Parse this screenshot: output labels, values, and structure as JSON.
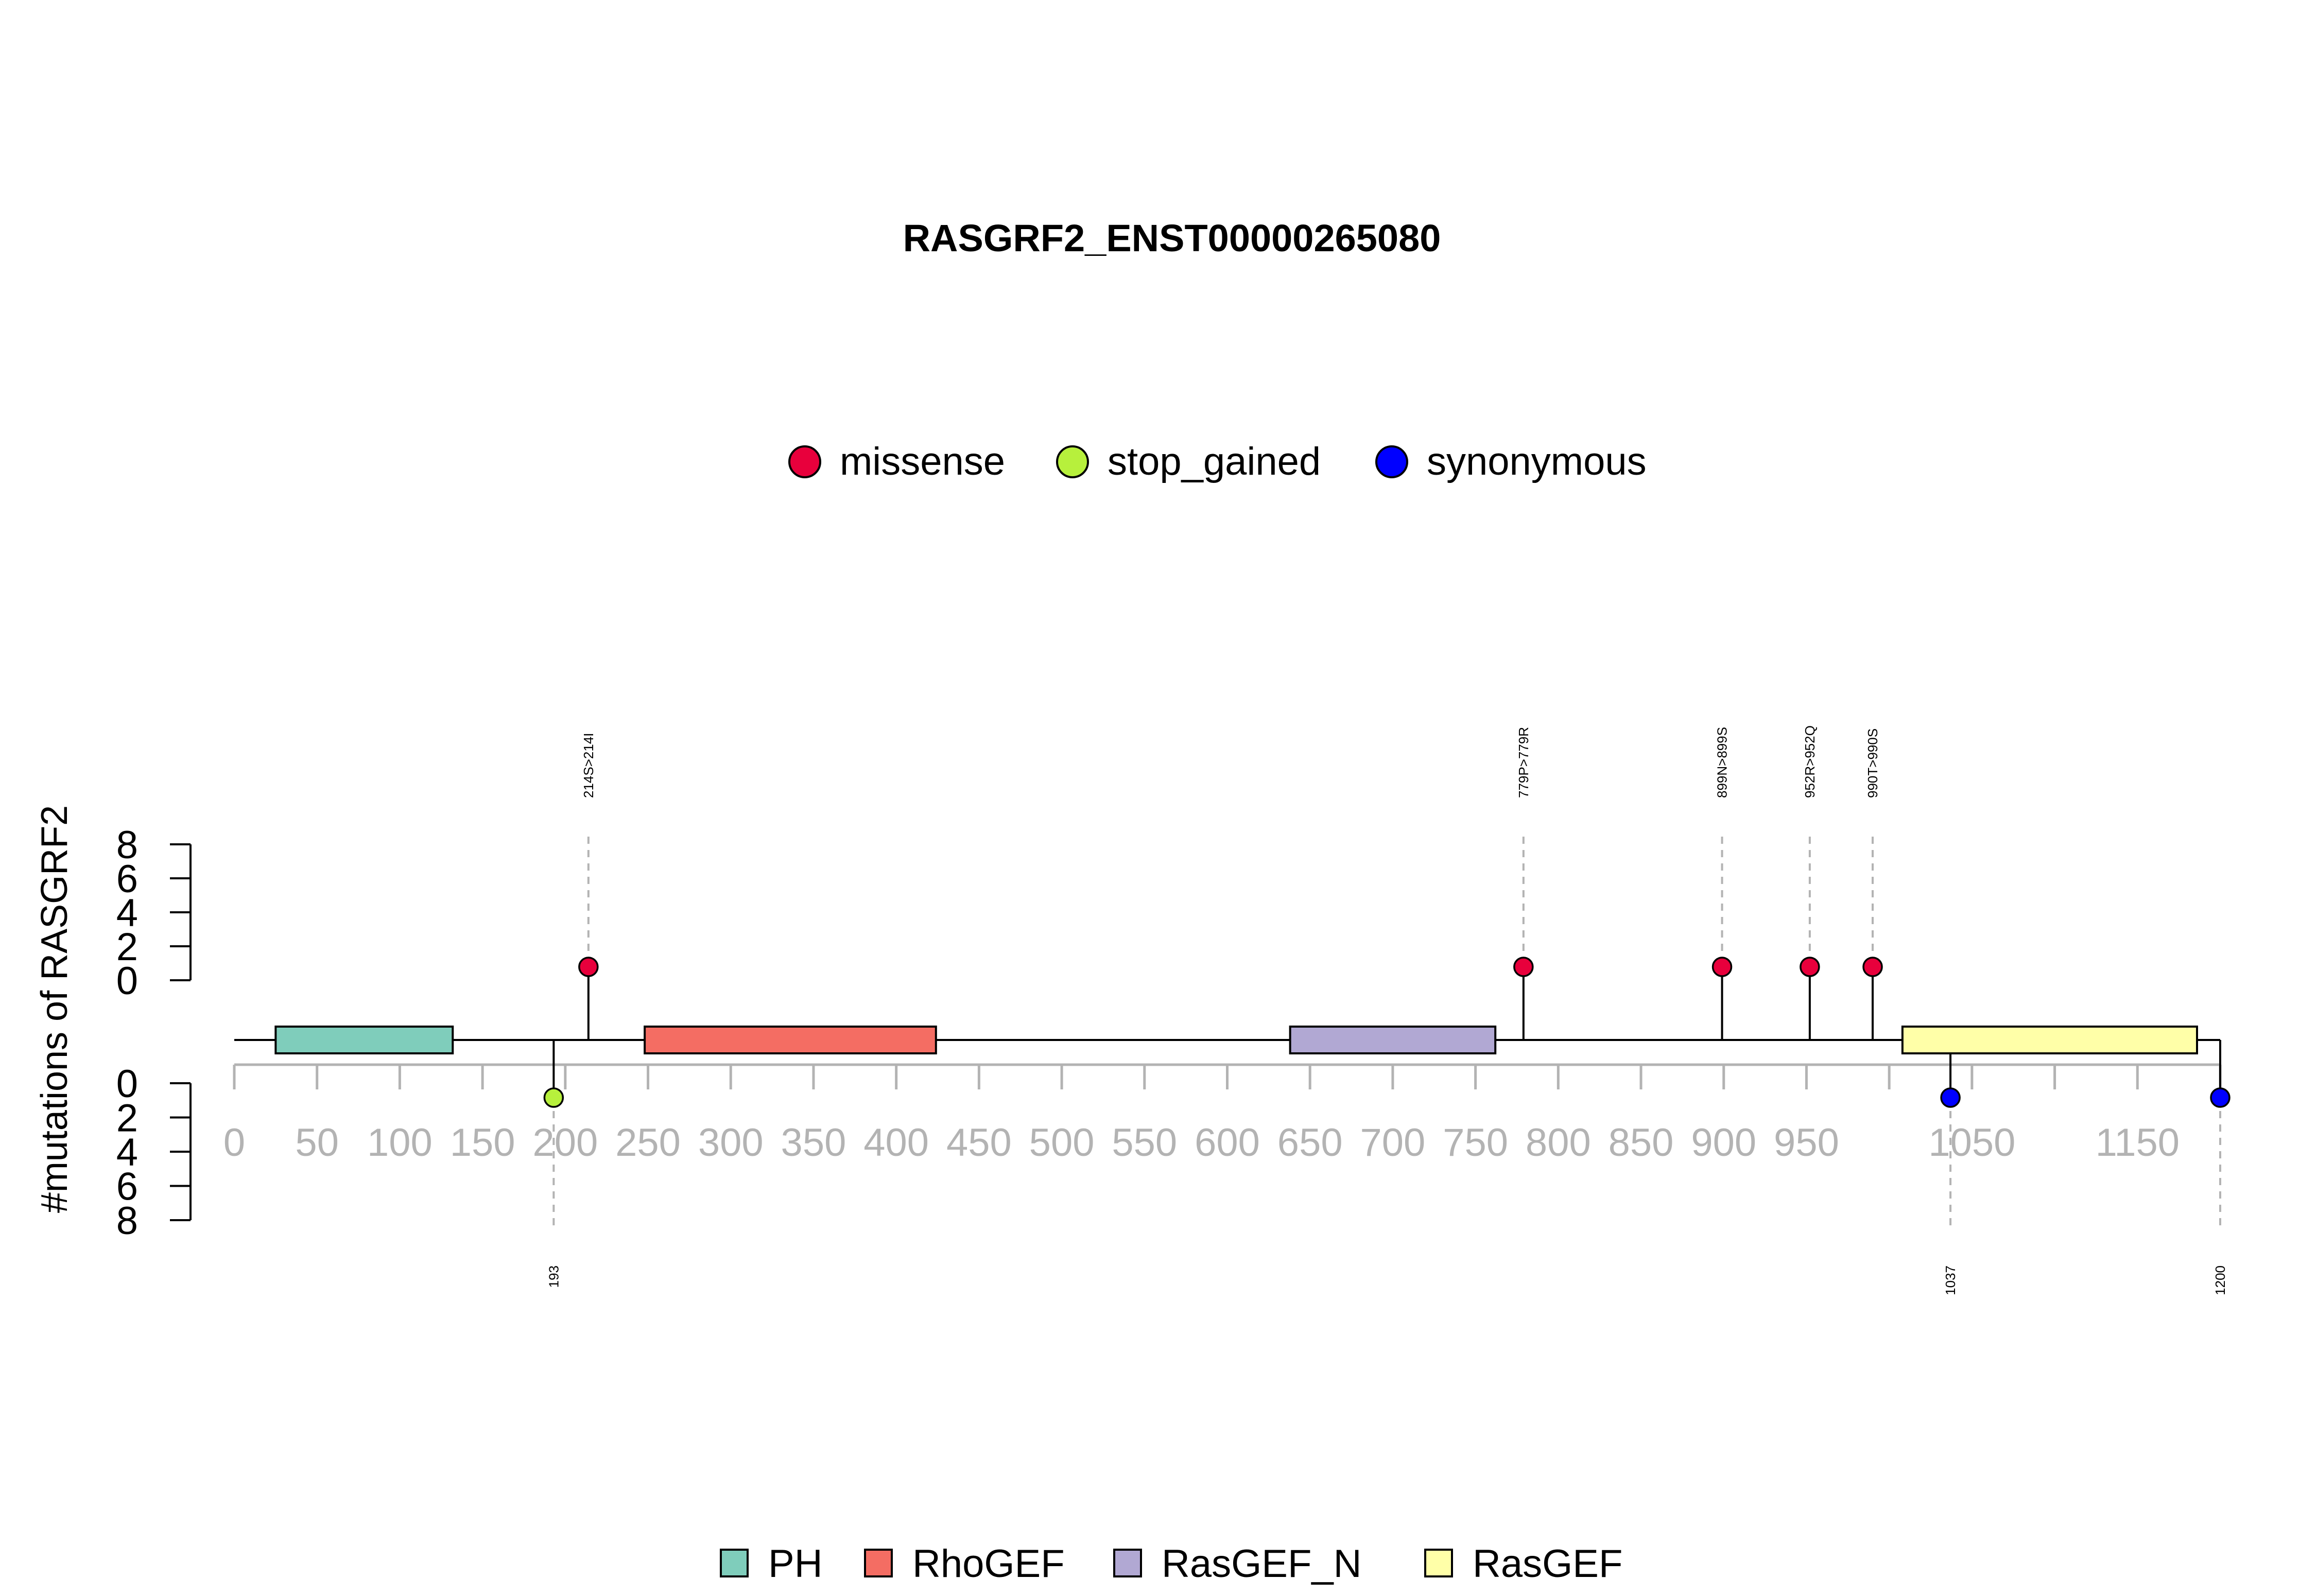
{
  "chart_data": {
    "type": "lollipop",
    "title": "RASGRF2_ENST00000265080",
    "ylabel": "#mutations of RASGRF2",
    "x_ticks": [
      0,
      50,
      100,
      150,
      200,
      250,
      300,
      350,
      400,
      450,
      500,
      550,
      600,
      650,
      700,
      750,
      800,
      850,
      900,
      950,
      1050,
      1150
    ],
    "x_tick_marks": [
      0,
      50,
      100,
      150,
      200,
      250,
      300,
      350,
      400,
      450,
      500,
      550,
      600,
      650,
      700,
      750,
      800,
      850,
      900,
      950,
      1000,
      1050,
      1100,
      1150,
      1200
    ],
    "xlim": [
      0,
      1200
    ],
    "y_ticks_top": [
      0,
      2,
      4,
      6,
      8
    ],
    "y_ticks_bottom": [
      0,
      2,
      4,
      6,
      8
    ],
    "ylim": [
      0,
      8
    ],
    "mutation_legend": [
      {
        "label": "missense",
        "color": "#e8003c"
      },
      {
        "label": "stop_gained",
        "color": "#b7f03c"
      },
      {
        "label": "synonymous",
        "color": "#0000ff"
      }
    ],
    "domain_legend": [
      {
        "label": "PH",
        "color": "#7fcdbb"
      },
      {
        "label": "RhoGEF",
        "color": "#f46d63"
      },
      {
        "label": "RasGEF_N",
        "color": "#b1a8d3"
      },
      {
        "label": "RasGEF",
        "color": "#ffffa8"
      }
    ],
    "domains": [
      {
        "name": "PH",
        "start": 25,
        "end": 132,
        "color": "#7fcdbb"
      },
      {
        "name": "RhoGEF",
        "start": 248,
        "end": 424,
        "color": "#f46d63"
      },
      {
        "name": "RasGEF_N",
        "start": 638,
        "end": 762,
        "color": "#b1a8d3"
      },
      {
        "name": "RasGEF",
        "start": 1008,
        "end": 1186,
        "color": "#ffffa8"
      }
    ],
    "mutations_top": [
      {
        "pos": 214,
        "count": 1,
        "label": "214S>214I",
        "type": "missense",
        "color": "#e8003c"
      },
      {
        "pos": 779,
        "count": 1,
        "label": "779P>779R",
        "type": "missense",
        "color": "#e8003c"
      },
      {
        "pos": 899,
        "count": 1,
        "label": "899N>899S",
        "type": "missense",
        "color": "#e8003c"
      },
      {
        "pos": 952,
        "count": 1,
        "label": "952R>952Q",
        "type": "missense",
        "color": "#e8003c"
      },
      {
        "pos": 990,
        "count": 1,
        "label": "990T>990S",
        "type": "missense",
        "color": "#e8003c"
      }
    ],
    "mutations_bottom": [
      {
        "pos": 193,
        "count": 1,
        "label": "193",
        "type": "stop_gained",
        "color": "#b7f03c"
      },
      {
        "pos": 1037,
        "count": 1,
        "label": "1037",
        "type": "synonymous",
        "color": "#0000ff"
      },
      {
        "pos": 1200,
        "count": 1,
        "label": "1200",
        "type": "synonymous",
        "color": "#0000ff"
      }
    ]
  }
}
